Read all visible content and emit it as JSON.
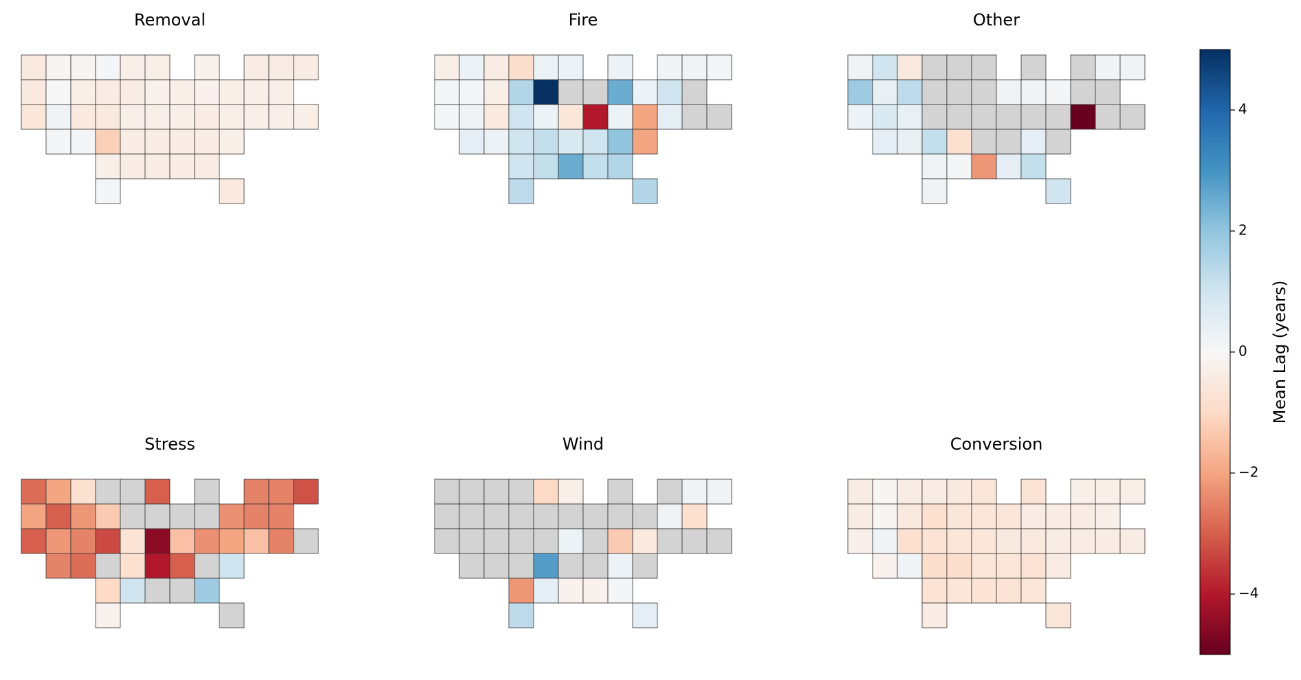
{
  "chart_data": {
    "type": "choropleth",
    "panels": [
      {
        "title": "Removal",
        "values": [
          -0.5,
          -0.1,
          -0.1,
          0.1,
          -0.3,
          -0.3,
          -0.2,
          -0.4,
          -0.4,
          -0.4,
          -0.5,
          0,
          -0.3,
          -0.4,
          -0.4,
          -0.2,
          -0.3,
          -0.2,
          -0.3,
          -0.3,
          -0.3,
          -0.6,
          0.2,
          -0.5,
          -0.5,
          -0.3,
          -0.3,
          -0.3,
          -0.4,
          -0.3,
          -0.3,
          -0.3,
          -0.3,
          0.1,
          0.1,
          -1.2,
          -0.4,
          -0.4,
          -0.4,
          -0.4,
          -0.3,
          -0.3,
          -0.4,
          -0.4,
          -0.4,
          -0.4,
          0.1,
          -0.5
        ]
      },
      {
        "title": "Fire",
        "values": [
          -0.3,
          0.3,
          -0.4,
          -0.9,
          0.3,
          0.3,
          0.3,
          0.2,
          0.2,
          0.1,
          0.1,
          0.1,
          -0.3,
          1.5,
          5,
          null,
          null,
          2.5,
          0.3,
          1.0,
          null,
          0.1,
          0.2,
          -0.5,
          1.0,
          0.3,
          -0.6,
          -4,
          0.3,
          -2,
          0.5,
          null,
          null,
          0.5,
          0.3,
          1.0,
          1.2,
          0.8,
          1.0,
          2.0,
          -2,
          1.0,
          1.2,
          2.5,
          1.2,
          1.5,
          1.3,
          1.5
        ]
      },
      {
        "title": "Other",
        "values": [
          0.2,
          1.0,
          -0.5,
          null,
          null,
          null,
          null,
          null,
          0.2,
          0.2,
          1.8,
          0.4,
          1.3,
          null,
          null,
          null,
          0.2,
          0.2,
          0.1,
          null,
          null,
          0.3,
          0.8,
          0.4,
          null,
          null,
          null,
          null,
          null,
          null,
          -5,
          null,
          null,
          0.5,
          0.4,
          1.2,
          -0.8,
          null,
          null,
          0.5,
          null,
          0.2,
          0.1,
          -2.2,
          0.5,
          1.2,
          0.2,
          1.0
        ]
      },
      {
        "title": "Stress",
        "values": [
          -2.8,
          -2,
          -0.8,
          null,
          null,
          -3,
          null,
          -2.5,
          -2.5,
          -3.2,
          -2,
          -3,
          -2.2,
          -1.3,
          null,
          null,
          null,
          null,
          -2.3,
          -2.5,
          -2.5,
          -3,
          -2.2,
          -2.5,
          -3.3,
          -0.7,
          -4.5,
          -1.5,
          -2.3,
          -2,
          -1.5,
          -2.5,
          null,
          -2.5,
          -2.8,
          null,
          -0.8,
          -4,
          -3,
          null,
          1.0,
          -1.0,
          1.0,
          null,
          null,
          1.8,
          -0.2,
          null
        ]
      },
      {
        "title": "Wind",
        "values": [
          null,
          null,
          null,
          null,
          -1,
          -0.3,
          null,
          null,
          0.2,
          0.2,
          null,
          null,
          null,
          null,
          null,
          null,
          null,
          null,
          null,
          0.2,
          -0.8,
          null,
          null,
          null,
          null,
          null,
          0.3,
          null,
          -1.3,
          -0.5,
          null,
          null,
          null,
          null,
          null,
          null,
          2.8,
          null,
          null,
          0.3,
          null,
          -2.2,
          0.5,
          -0.2,
          -0.2,
          0.1,
          1.3,
          0.5
        ]
      },
      {
        "title": "Conversion",
        "values": [
          -0.4,
          -0.1,
          -0.4,
          -0.4,
          -0.5,
          -0.6,
          -0.7,
          -0.3,
          -0.3,
          -0.3,
          -0.4,
          -0.1,
          -0.5,
          -0.8,
          -0.6,
          -0.6,
          -0.6,
          -0.4,
          -0.4,
          -0.4,
          -0.3,
          -0.3,
          0.2,
          -0.8,
          -0.7,
          -0.6,
          -0.6,
          -0.5,
          -0.5,
          -0.4,
          -0.4,
          -0.4,
          -0.4,
          -0.2,
          0.2,
          -0.9,
          -0.9,
          -0.6,
          -0.6,
          -0.7,
          -0.4,
          -0.7,
          -0.6,
          -0.7,
          -0.7,
          -0.6,
          -0.4,
          -0.6
        ]
      }
    ],
    "colormap": [
      "#67001f",
      "#b2182b",
      "#d6604d",
      "#f4a582",
      "#fddbc7",
      "#f7f7f7",
      "#d1e5f0",
      "#92c5de",
      "#4393c3",
      "#2166ac",
      "#053061"
    ],
    "missing_color": "#d3d3d3",
    "colorbar": {
      "label": "Mean Lag (years)",
      "lim": [
        -5,
        5
      ],
      "ticks": [
        {
          "value": -4,
          "label": "−4"
        },
        {
          "value": -2,
          "label": "−2"
        },
        0,
        2,
        4
      ]
    }
  }
}
